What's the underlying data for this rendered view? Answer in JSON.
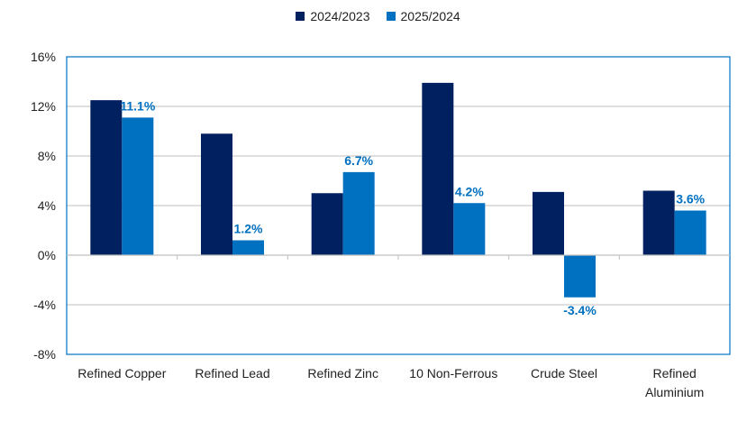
{
  "chart_data": {
    "type": "bar",
    "title": "",
    "xlabel": "",
    "ylabel": "",
    "categories": [
      [
        "Refined Copper"
      ],
      [
        "Refined Lead"
      ],
      [
        "Refined Zinc"
      ],
      [
        "10 Non-Ferrous"
      ],
      [
        "Crude Steel"
      ],
      [
        "Refined",
        "Aluminium"
      ]
    ],
    "series": [
      {
        "name": "2024/2023",
        "color": "#002060",
        "values": [
          12.5,
          9.8,
          5.0,
          13.9,
          5.1,
          5.2
        ],
        "labels": [
          null,
          null,
          null,
          null,
          null,
          null
        ]
      },
      {
        "name": "2025/2024",
        "color": "#0070c0",
        "values": [
          11.1,
          1.2,
          6.7,
          4.2,
          -3.4,
          3.6
        ],
        "labels": [
          "11.1%",
          "1.2%",
          "6.7%",
          "4.2%",
          "-3.4%",
          "3.6%"
        ]
      }
    ],
    "ylim": [
      -8,
      16
    ],
    "yticks": [
      16,
      12,
      8,
      4,
      0,
      -4,
      -8
    ],
    "ytick_labels": [
      "16%",
      "12%",
      "8%",
      "4%",
      "0%",
      "-4%",
      "-8%"
    ],
    "grid": true,
    "legend_position": "top-center"
  }
}
